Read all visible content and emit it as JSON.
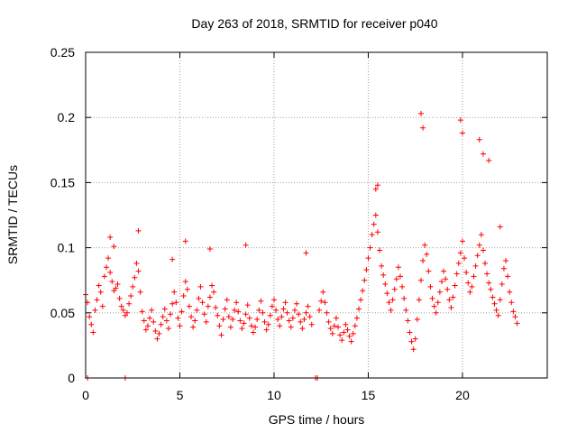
{
  "chart_data": {
    "type": "scatter",
    "title": "Day 263 of 2018, SRMTID for receiver p040",
    "xlabel": "GPS time / hours",
    "ylabel": "SRMTID / TECUs",
    "xlim": [
      0,
      24.5
    ],
    "ylim": [
      0,
      0.25
    ],
    "xticks": [
      0,
      5,
      10,
      15,
      20
    ],
    "xtick_labels": [
      "0",
      "5",
      "10",
      "15",
      "20"
    ],
    "yticks": [
      0,
      0.05,
      0.1,
      0.15,
      0.2,
      0.25
    ],
    "ytick_labels": [
      "0",
      "0.05",
      "0.1",
      "0.15",
      "0.2",
      "0.25"
    ],
    "grid": true,
    "marker": "plus",
    "color": "#ff0000",
    "series": [
      {
        "name": "SRMTID",
        "x": [
          0.0,
          0.1,
          0.2,
          0.3,
          0.4,
          0.5,
          0.6,
          0.7,
          0.8,
          0.9,
          1.0,
          1.1,
          1.2,
          1.3,
          1.4,
          1.5,
          1.6,
          1.7,
          1.8,
          1.9,
          2.0,
          2.1,
          2.2,
          2.3,
          2.4,
          2.5,
          2.6,
          2.7,
          2.8,
          2.9,
          3.0,
          3.1,
          3.2,
          3.3,
          3.4,
          3.5,
          3.6,
          3.7,
          3.8,
          3.9,
          4.0,
          4.1,
          4.2,
          4.3,
          4.4,
          4.5,
          4.6,
          4.7,
          4.8,
          4.9,
          5.0,
          5.1,
          5.2,
          5.3,
          5.4,
          5.5,
          5.6,
          5.7,
          5.8,
          5.9,
          6.0,
          6.1,
          6.2,
          6.3,
          6.4,
          6.5,
          6.6,
          6.7,
          6.8,
          6.9,
          7.0,
          7.1,
          7.2,
          7.3,
          7.4,
          7.5,
          7.6,
          7.7,
          7.8,
          7.9,
          8.0,
          8.1,
          8.2,
          8.3,
          8.4,
          8.5,
          8.6,
          8.7,
          8.8,
          8.9,
          9.0,
          9.1,
          9.2,
          9.3,
          9.4,
          9.5,
          9.6,
          9.7,
          9.8,
          9.9,
          10.0,
          10.1,
          10.2,
          10.3,
          10.4,
          10.5,
          10.6,
          10.7,
          10.8,
          10.9,
          11.0,
          11.1,
          11.2,
          11.3,
          11.4,
          11.5,
          11.6,
          11.7,
          11.8,
          11.9,
          12.0,
          12.4,
          12.5,
          12.6,
          12.7,
          12.8,
          12.9,
          13.0,
          13.1,
          13.2,
          13.3,
          13.4,
          13.5,
          13.6,
          13.7,
          13.8,
          13.9,
          14.0,
          14.1,
          14.2,
          14.3,
          14.4,
          14.5,
          14.6,
          14.7,
          14.8,
          14.9,
          15.0,
          15.1,
          15.2,
          15.3,
          15.4,
          15.5,
          15.6,
          15.7,
          15.8,
          15.9,
          16.0,
          16.1,
          16.2,
          16.3,
          16.4,
          16.5,
          16.6,
          16.7,
          16.8,
          16.9,
          17.0,
          17.1,
          17.2,
          17.3,
          17.4,
          17.5,
          17.6,
          17.7,
          17.8,
          17.9,
          18.0,
          18.1,
          18.2,
          18.3,
          18.4,
          18.5,
          18.6,
          18.7,
          18.8,
          18.9,
          19.0,
          19.1,
          19.2,
          19.3,
          19.4,
          19.5,
          19.6,
          19.7,
          19.8,
          19.9,
          20.0,
          20.1,
          20.2,
          20.3,
          20.4,
          20.5,
          20.6,
          20.7,
          20.8,
          20.9,
          21.0,
          21.1,
          21.2,
          21.3,
          21.4,
          21.5,
          21.6,
          21.7,
          21.8,
          21.9,
          22.0,
          22.1,
          22.2,
          22.3,
          22.4,
          22.5,
          22.6,
          22.7,
          22.8,
          22.9,
          1.3,
          1.5,
          2.8,
          4.6,
          5.3,
          6.6,
          8.5,
          11.7,
          15.4,
          15.5,
          17.8,
          17.9,
          19.9,
          20.0,
          20.9,
          21.1,
          21.4,
          22.0,
          0.1,
          2.1,
          12.2,
          12.3
        ],
        "y": [
          0.064,
          0.058,
          0.047,
          0.041,
          0.035,
          0.052,
          0.06,
          0.071,
          0.066,
          0.055,
          0.078,
          0.085,
          0.092,
          0.081,
          0.074,
          0.067,
          0.069,
          0.072,
          0.061,
          0.055,
          0.052,
          0.048,
          0.05,
          0.057,
          0.063,
          0.07,
          0.077,
          0.088,
          0.082,
          0.066,
          0.051,
          0.044,
          0.037,
          0.04,
          0.046,
          0.052,
          0.043,
          0.036,
          0.03,
          0.034,
          0.041,
          0.047,
          0.053,
          0.044,
          0.038,
          0.049,
          0.057,
          0.066,
          0.058,
          0.046,
          0.04,
          0.051,
          0.063,
          0.074,
          0.068,
          0.055,
          0.047,
          0.039,
          0.044,
          0.052,
          0.061,
          0.07,
          0.058,
          0.049,
          0.043,
          0.055,
          0.062,
          0.071,
          0.066,
          0.054,
          0.048,
          0.04,
          0.033,
          0.045,
          0.053,
          0.06,
          0.047,
          0.039,
          0.045,
          0.052,
          0.058,
          0.051,
          0.044,
          0.038,
          0.042,
          0.049,
          0.056,
          0.046,
          0.04,
          0.035,
          0.039,
          0.045,
          0.052,
          0.059,
          0.05,
          0.043,
          0.037,
          0.041,
          0.048,
          0.055,
          0.06,
          0.052,
          0.045,
          0.04,
          0.047,
          0.053,
          0.058,
          0.05,
          0.044,
          0.039,
          0.046,
          0.052,
          0.057,
          0.049,
          0.043,
          0.038,
          0.045,
          0.05,
          0.055,
          0.047,
          0.041,
          0.052,
          0.059,
          0.066,
          0.058,
          0.05,
          0.043,
          0.038,
          0.034,
          0.04,
          0.046,
          0.039,
          0.033,
          0.029,
          0.035,
          0.041,
          0.037,
          0.032,
          0.028,
          0.034,
          0.04,
          0.046,
          0.053,
          0.06,
          0.067,
          0.075,
          0.083,
          0.092,
          0.1,
          0.11,
          0.118,
          0.125,
          0.112,
          0.098,
          0.086,
          0.079,
          0.072,
          0.065,
          0.058,
          0.052,
          0.06,
          0.068,
          0.076,
          0.085,
          0.078,
          0.07,
          0.061,
          0.052,
          0.044,
          0.035,
          0.028,
          0.022,
          0.03,
          0.045,
          0.06,
          0.075,
          0.09,
          0.102,
          0.095,
          0.082,
          0.07,
          0.061,
          0.055,
          0.05,
          0.058,
          0.066,
          0.074,
          0.082,
          0.076,
          0.068,
          0.06,
          0.054,
          0.062,
          0.071,
          0.08,
          0.088,
          0.096,
          0.105,
          0.092,
          0.081,
          0.073,
          0.066,
          0.07,
          0.078,
          0.086,
          0.094,
          0.102,
          0.11,
          0.098,
          0.088,
          0.08,
          0.073,
          0.068,
          0.062,
          0.057,
          0.052,
          0.048,
          0.06,
          0.072,
          0.084,
          0.09,
          0.078,
          0.066,
          0.058,
          0.051,
          0.047,
          0.042,
          0.108,
          0.101,
          0.113,
          0.091,
          0.105,
          0.099,
          0.102,
          0.096,
          0.145,
          0.148,
          0.203,
          0.192,
          0.198,
          0.188,
          0.183,
          0.172,
          0.167,
          0.116,
          0.0,
          0.0,
          0.0,
          0.0
        ]
      }
    ]
  }
}
